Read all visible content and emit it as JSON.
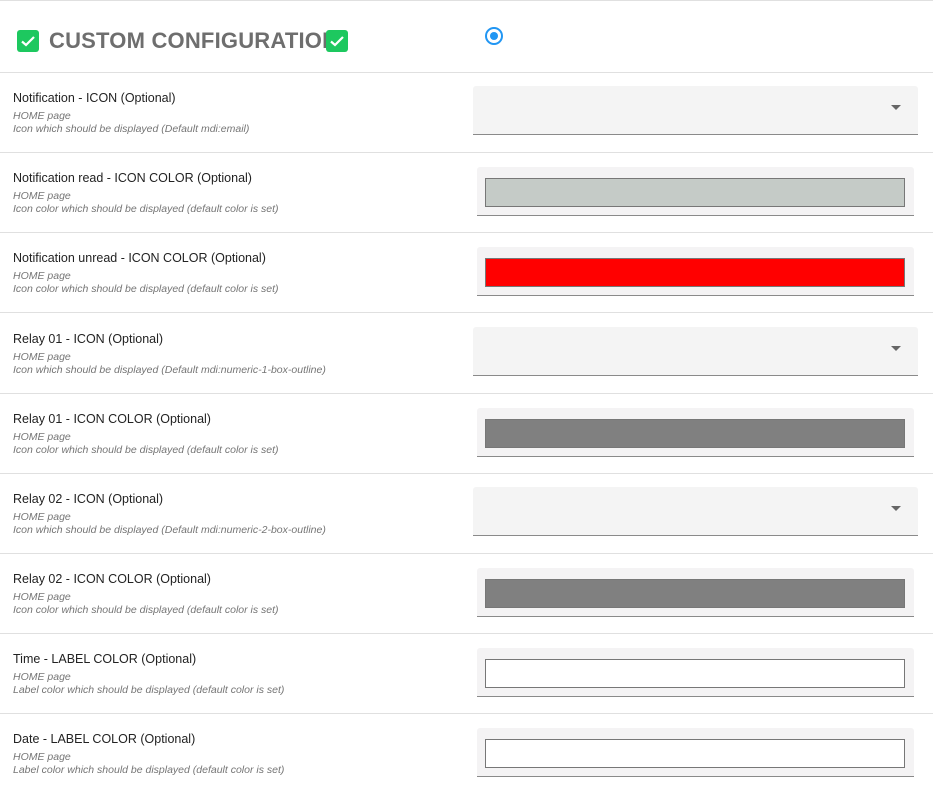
{
  "header": {
    "title": "CUSTOM CONFIGURATION",
    "checkbox_color": "#1dc85f",
    "radio_selected": true
  },
  "rows": [
    {
      "label": "Notification - ICON (Optional)",
      "page": "HOME page",
      "desc": "Icon which should be displayed (Default mdi:email)",
      "type": "select",
      "value": ""
    },
    {
      "label": "Notification read - ICON COLOR (Optional)",
      "page": "HOME page",
      "desc": "Icon color which should be displayed (default color is set)",
      "type": "color",
      "value": "#c5cbc7"
    },
    {
      "label": "Notification unread - ICON COLOR (Optional)",
      "page": "HOME page",
      "desc": "Icon color which should be displayed (default color is set)",
      "type": "color",
      "value": "#ff0000"
    },
    {
      "label": "Relay 01 - ICON (Optional)",
      "page": "HOME page",
      "desc": "Icon which should be displayed (Default mdi:numeric-1-box-outline)",
      "type": "select",
      "value": ""
    },
    {
      "label": "Relay 01 - ICON COLOR (Optional)",
      "page": "HOME page",
      "desc": "Icon color which should be displayed (default color is set)",
      "type": "color",
      "value": "#808080"
    },
    {
      "label": "Relay 02 - ICON (Optional)",
      "page": "HOME page",
      "desc": "Icon which should be displayed (Default mdi:numeric-2-box-outline)",
      "type": "select",
      "value": ""
    },
    {
      "label": "Relay 02 - ICON COLOR (Optional)",
      "page": "HOME page",
      "desc": "Icon color which should be displayed (default color is set)",
      "type": "color",
      "value": "#808080"
    },
    {
      "label": "Time - LABEL COLOR (Optional)",
      "page": "HOME page",
      "desc": "Label color which should be displayed (default color is set)",
      "type": "color",
      "value": "#ffffff"
    },
    {
      "label": "Date - LABEL COLOR (Optional)",
      "page": "HOME page",
      "desc": "Label color which should be displayed (default color is set)",
      "type": "color",
      "value": "#ffffff"
    }
  ]
}
